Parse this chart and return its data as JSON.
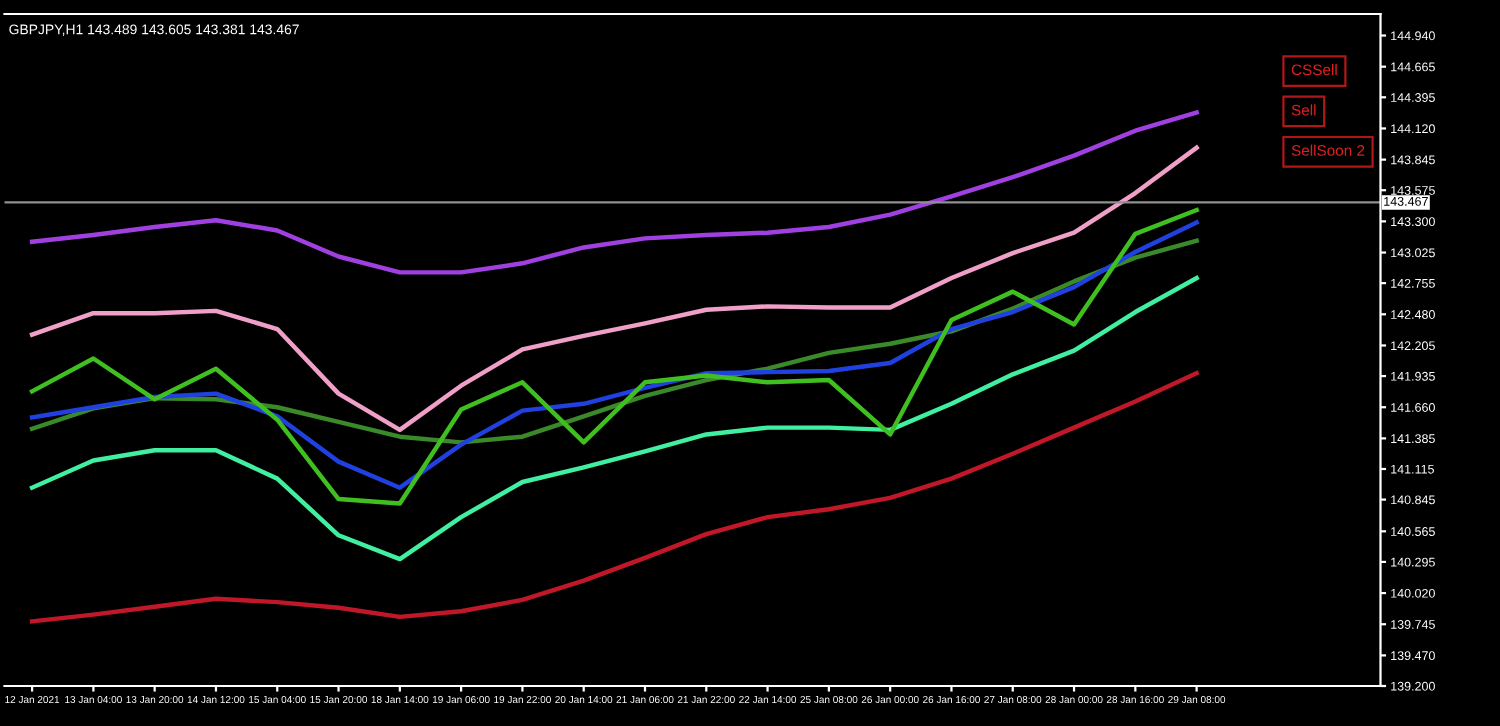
{
  "chart_data": {
    "type": "line",
    "title": "GBPJPY,H1 143.489 143.605 143.381 143.467",
    "annotations": [
      "CSSell",
      "Sell",
      "SellSoon 2"
    ],
    "ylim": [
      139.2,
      145.13
    ],
    "categories": [
      "12 Jan 2021",
      "13 Jan 04:00",
      "13 Jan 20:00",
      "14 Jan 12:00",
      "15 Jan 04:00",
      "15 Jan 20:00",
      "18 Jan 14:00",
      "19 Jan 06:00",
      "19 Jan 22:00",
      "20 Jan 14:00",
      "21 Jan 06:00",
      "21 Jan 22:00",
      "22 Jan 14:00",
      "25 Jan 08:00",
      "26 Jan 00:00",
      "26 Jan 16:00",
      "27 Jan 08:00",
      "28 Jan 00:00",
      "28 Jan 16:00",
      "29 Jan 08:00"
    ],
    "yticks": [
      {
        "value": 144.94,
        "label": "144.940"
      },
      {
        "value": 144.665,
        "label": "144.665"
      },
      {
        "value": 144.395,
        "label": "144.395"
      },
      {
        "value": 144.12,
        "label": "144.120"
      },
      {
        "value": 143.845,
        "label": "143.845"
      },
      {
        "value": 143.575,
        "label": "143.575"
      },
      {
        "value": 143.3,
        "label": "143.300"
      },
      {
        "value": 143.025,
        "label": "143.025"
      },
      {
        "value": 142.755,
        "label": "142.755"
      },
      {
        "value": 142.48,
        "label": "142.480"
      },
      {
        "value": 142.205,
        "label": "142.205"
      },
      {
        "value": 141.935,
        "label": "141.935"
      },
      {
        "value": 141.66,
        "label": "141.660"
      },
      {
        "value": 141.385,
        "label": "141.385"
      },
      {
        "value": 141.115,
        "label": "141.115"
      },
      {
        "value": 140.845,
        "label": "140.845"
      },
      {
        "value": 140.565,
        "label": "140.565"
      },
      {
        "value": 140.295,
        "label": "140.295"
      },
      {
        "value": 140.02,
        "label": "140.020"
      },
      {
        "value": 139.745,
        "label": "139.745"
      },
      {
        "value": 139.47,
        "label": "139.470"
      },
      {
        "value": 139.2,
        "label": "139.200"
      }
    ],
    "ref_lines": [
      {
        "axis": "y",
        "value": 143.467,
        "label": "143.467",
        "color": "#909090"
      }
    ],
    "grid": false,
    "legend": false,
    "marker": "none",
    "line_style": "solid",
    "series": [
      {
        "color": "#a040e0",
        "values": [
          143.12,
          143.18,
          143.25,
          143.31,
          143.22,
          142.99,
          142.85,
          142.85,
          142.93,
          143.07,
          143.15,
          143.18,
          143.2,
          143.25,
          143.36,
          143.52,
          143.69,
          143.88,
          144.1,
          144.26
        ]
      },
      {
        "color": "#f0a0c8",
        "values": [
          142.3,
          142.49,
          142.49,
          142.51,
          142.35,
          141.78,
          141.46,
          141.85,
          142.17,
          142.29,
          142.4,
          142.52,
          142.55,
          142.54,
          142.54,
          142.8,
          143.02,
          143.2,
          143.55,
          143.95
        ]
      },
      {
        "color": "#40f0a0",
        "values": [
          140.95,
          141.19,
          141.28,
          141.28,
          141.03,
          140.53,
          140.32,
          140.69,
          141.0,
          141.13,
          141.27,
          141.42,
          141.48,
          141.48,
          141.46,
          141.69,
          141.95,
          142.16,
          142.5,
          142.8
        ]
      },
      {
        "color": "#c01828",
        "values": [
          139.77,
          139.83,
          139.9,
          139.97,
          139.94,
          139.89,
          139.81,
          139.86,
          139.96,
          140.13,
          140.33,
          140.54,
          140.69,
          140.76,
          140.86,
          141.03,
          141.25,
          141.48,
          141.71,
          141.96
        ]
      },
      {
        "color": "#3a8a2a",
        "values": [
          141.47,
          141.65,
          141.74,
          141.73,
          141.66,
          141.53,
          141.4,
          141.35,
          141.4,
          141.58,
          141.76,
          141.9,
          142.0,
          142.14,
          142.22,
          142.33,
          142.53,
          142.77,
          142.98,
          143.13
        ]
      },
      {
        "color": "#2040e0",
        "values": [
          141.57,
          141.66,
          141.75,
          141.78,
          141.58,
          141.18,
          140.95,
          141.33,
          141.63,
          141.69,
          141.83,
          141.96,
          141.97,
          141.98,
          142.05,
          142.35,
          142.5,
          142.72,
          143.03,
          143.29
        ]
      },
      {
        "color": "#40c020",
        "values": [
          141.8,
          142.09,
          141.73,
          142.0,
          141.55,
          140.85,
          140.81,
          141.64,
          141.88,
          141.35,
          141.88,
          141.94,
          141.88,
          141.9,
          141.42,
          142.43,
          142.68,
          142.39,
          143.19,
          143.4
        ]
      }
    ]
  }
}
